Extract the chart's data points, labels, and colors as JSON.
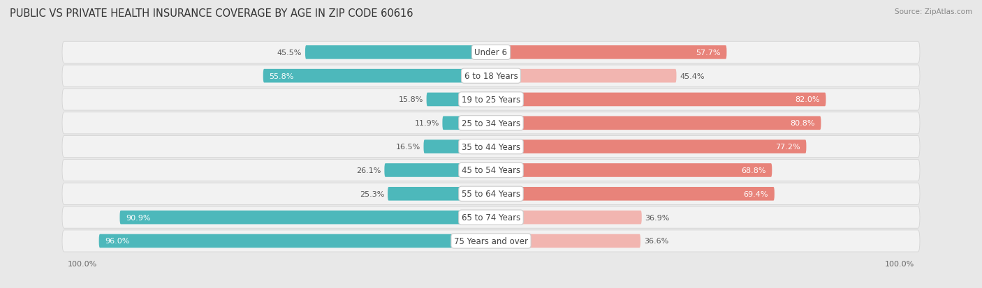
{
  "title": "PUBLIC VS PRIVATE HEALTH INSURANCE COVERAGE BY AGE IN ZIP CODE 60616",
  "source": "Source: ZipAtlas.com",
  "categories": [
    "Under 6",
    "6 to 18 Years",
    "19 to 25 Years",
    "25 to 34 Years",
    "35 to 44 Years",
    "45 to 54 Years",
    "55 to 64 Years",
    "65 to 74 Years",
    "75 Years and over"
  ],
  "public_values": [
    45.5,
    55.8,
    15.8,
    11.9,
    16.5,
    26.1,
    25.3,
    90.9,
    96.0
  ],
  "private_values": [
    57.7,
    45.4,
    82.0,
    80.8,
    77.2,
    68.8,
    69.4,
    36.9,
    36.6
  ],
  "public_color": "#4db8bb",
  "private_color": "#e8837a",
  "public_color_low": "#a8d8da",
  "private_color_low": "#f2b5b0",
  "bg_color": "#e8e8e8",
  "row_bg_color": "#f2f2f2",
  "row_separator_color": "#d0d0d0",
  "max_value": 100.0,
  "bar_height": 0.58,
  "title_fontsize": 10.5,
  "label_fontsize": 8.0,
  "cat_fontsize": 8.5,
  "axis_label_fontsize": 8,
  "legend_fontsize": 8.5,
  "white_text_threshold": 50.0
}
